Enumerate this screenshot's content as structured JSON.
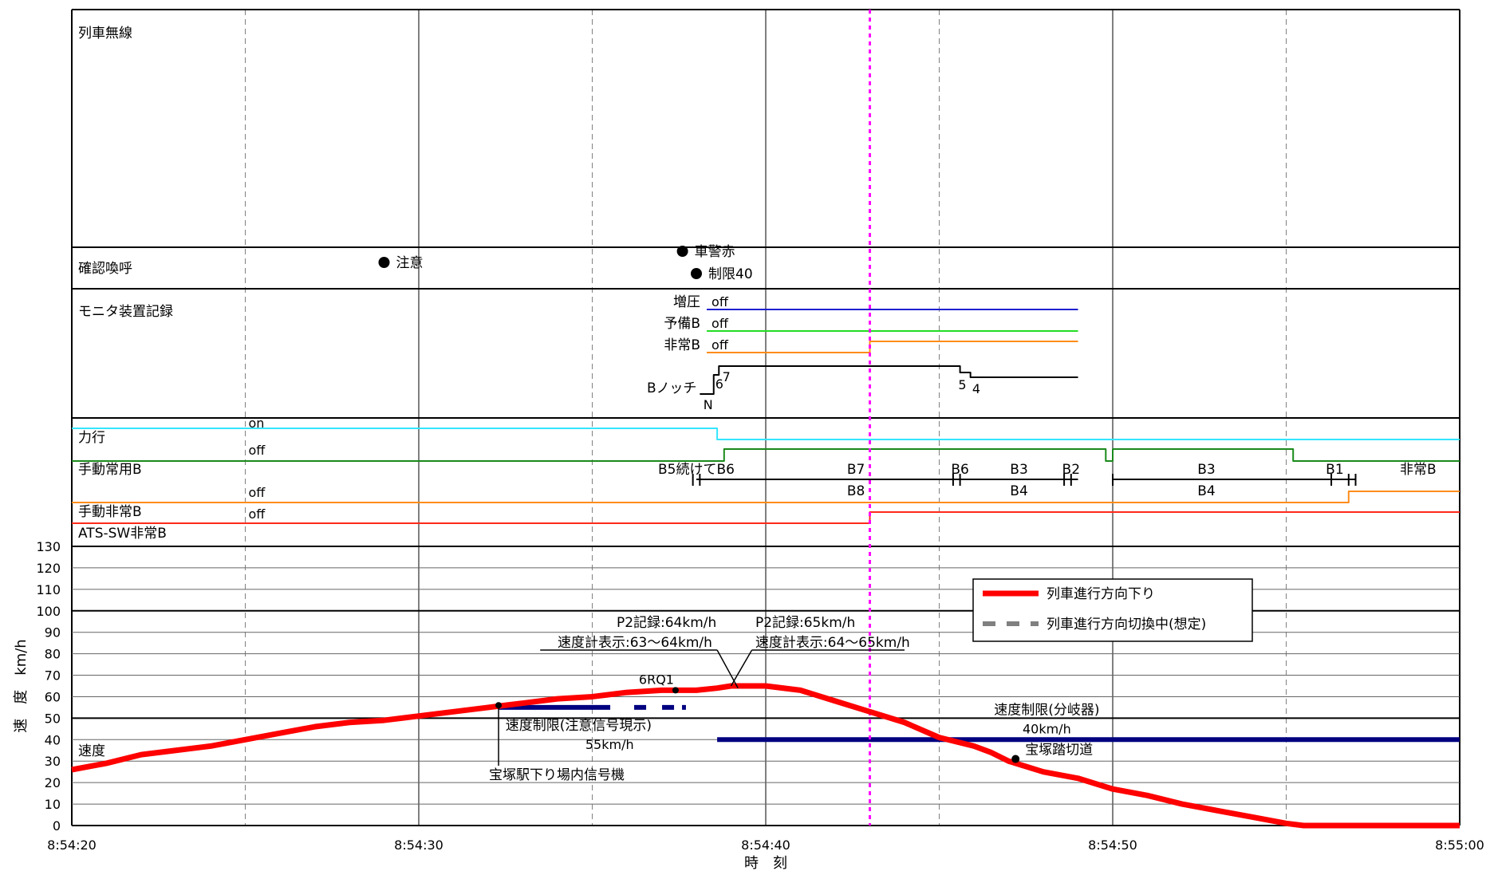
{
  "chart_data": {
    "type": "line",
    "x_axis": {
      "label": "時　刻",
      "min": 0,
      "max": 40,
      "ticks": [
        {
          "t": 0,
          "label": "8:54:20"
        },
        {
          "t": 10,
          "label": "8:54:30"
        },
        {
          "t": 20,
          "label": "8:54:40"
        },
        {
          "t": 30,
          "label": "8:54:50"
        },
        {
          "t": 40,
          "label": "8:55:00"
        }
      ],
      "dashed_grid": [
        5,
        15,
        25,
        35
      ],
      "marker_time": 23
    },
    "y_axis": {
      "label": "速　度　km/h",
      "min": 0,
      "max": 130,
      "step": 10,
      "tick_labels": [
        "0",
        "10",
        "20",
        "30",
        "40",
        "50",
        "60",
        "70",
        "80",
        "90",
        "100",
        "110",
        "120",
        "130"
      ]
    },
    "lane_labels": {
      "radio": "列車無線",
      "callout": "確認喚呼",
      "monitor": "モニタ装置記録",
      "power": "力行",
      "service_brake": "手動常用B",
      "emergency_brake": "手動非常B",
      "ats": "ATS-SW非常B",
      "speed": "速度"
    },
    "callouts": [
      {
        "t": 9.0,
        "text": "注意",
        "row": 0
      },
      {
        "t": 17.6,
        "text": "車警赤",
        "row": 0
      },
      {
        "t": 18.0,
        "text": "制限40",
        "row": 1
      }
    ],
    "monitor_signals": [
      {
        "name": "増圧",
        "state": "off",
        "color": "#1f1fd0",
        "t_start": 18.3,
        "t_end": 29.0,
        "step_t": null
      },
      {
        "name": "予備B",
        "state": "off",
        "color": "#22dd22",
        "t_start": 18.3,
        "t_end": 29.0,
        "step_t": null
      },
      {
        "name": "非常B",
        "state": "off",
        "color": "#ff8c1a",
        "t_start": 18.3,
        "t_end": 29.0,
        "step_t": 23.0
      }
    ],
    "b_notch": {
      "label": "Bノッチ",
      "notch_labels": [
        "N",
        "6",
        "7",
        "5",
        "4"
      ]
    },
    "lane_states": {
      "on": "on",
      "off": "off"
    },
    "power_line": {
      "color": "#33e5ff",
      "t_drop": 18.6
    },
    "service_brake_line": {
      "color": "#1a8a1a",
      "t_rise": 18.8,
      "t_fall": 29.8,
      "t_rise2": 30.0,
      "t_fall2": 35.2
    },
    "emergency_brake_line": {
      "color": "#ff8c1a",
      "t_rise": 36.8
    },
    "ats_line": {
      "color": "#ff2a1a",
      "t_rise": 23.0
    },
    "brake_steps": [
      {
        "t": 18.0,
        "text": "B5続けてB6",
        "row": "upper"
      },
      {
        "t": 22.6,
        "text": "B7",
        "row": "upper"
      },
      {
        "t": 22.6,
        "text": "B8",
        "row": "lower"
      },
      {
        "t": 25.6,
        "text": "B6",
        "row": "upper"
      },
      {
        "t": 27.3,
        "text": "B3",
        "row": "upper"
      },
      {
        "t": 27.3,
        "text": "B4",
        "row": "lower"
      },
      {
        "t": 28.8,
        "text": "B2",
        "row": "upper"
      },
      {
        "t": 32.7,
        "text": "B3",
        "row": "upper"
      },
      {
        "t": 32.7,
        "text": "B4",
        "row": "lower"
      },
      {
        "t": 36.4,
        "text": "B1",
        "row": "upper"
      },
      {
        "t": 38.8,
        "text": "非常B",
        "row": "upper"
      }
    ],
    "series": [
      {
        "name": "列車進行方向下り",
        "color": "#ff0000",
        "t": [
          0,
          1,
          2,
          3,
          4,
          5,
          6,
          7,
          8,
          9,
          10,
          11,
          12,
          13,
          14,
          15,
          16,
          17,
          18,
          18.6,
          19,
          19.5,
          20,
          21,
          22,
          23,
          24,
          25,
          26,
          26.5,
          27,
          28,
          29,
          30,
          31,
          32,
          33,
          34,
          35,
          35.5,
          36,
          37,
          38,
          39,
          40
        ],
        "v": [
          26,
          29,
          33,
          35,
          37,
          40,
          43,
          46,
          48,
          49,
          51,
          53,
          55,
          57,
          59,
          60,
          62,
          63,
          63,
          64,
          65,
          65,
          65,
          63,
          58,
          53,
          48,
          41,
          37,
          34,
          30,
          25,
          22,
          17,
          14,
          10,
          7,
          4,
          1,
          0,
          0,
          0,
          0,
          0,
          0
        ]
      }
    ],
    "legend_entries": [
      {
        "name": "列車進行方向下り",
        "color": "#ff0000",
        "style": "solid"
      },
      {
        "name": "列車進行方向切換中(想定)",
        "color": "#808080",
        "style": "dashed"
      }
    ],
    "limit_lines": [
      {
        "text": "速度制限(注意信号現示)",
        "value_text": "55km/h",
        "v": 55,
        "t_start": 12.3,
        "t_end": 17.7,
        "color": "#000080",
        "dashed": true
      },
      {
        "text": "速度制限(分岐器)",
        "value_text": "40km/h",
        "v": 40,
        "t_start": 18.6,
        "t_end": 40,
        "color": "#000080",
        "dashed": false
      }
    ],
    "annotations": [
      {
        "text": "P2記録:64km/h",
        "row": "top",
        "anchor_t": 19.0
      },
      {
        "text": "速度計表示:63～64km/h",
        "row": "bottom",
        "anchor_t": 19.0
      },
      {
        "text": "P2記録:65km/h",
        "row": "top",
        "anchor_t": 19.6
      },
      {
        "text": "速度計表示:64～65km/h",
        "row": "bottom",
        "anchor_t": 19.6
      },
      {
        "text": "6RQ1",
        "t": 17.4,
        "v": 63
      },
      {
        "text": "宝塚駅下り場内信号機",
        "t": 12.3,
        "v": 56
      },
      {
        "text": "宝塚踏切道",
        "t": 27.2,
        "v": 31
      }
    ]
  }
}
